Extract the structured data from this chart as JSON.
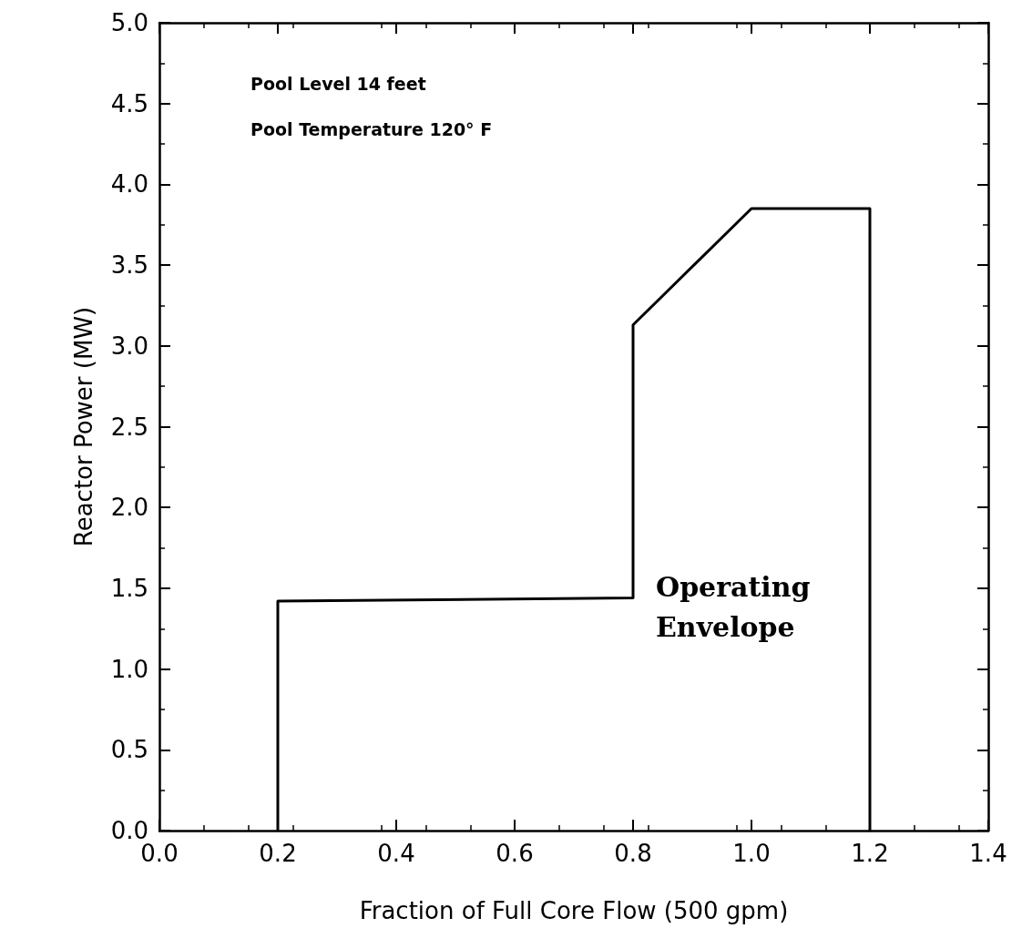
{
  "chart_data": {
    "type": "line",
    "xlabel": "Fraction of Full Core Flow (500 gpm)",
    "ylabel": "Reactor Power (MW)",
    "annotations": [
      "Pool Level 14 feet",
      "Pool Temperature 120° F",
      "Operating\nEnvelope"
    ],
    "series": [
      {
        "x": [
          0.2,
          0.2,
          0.8,
          0.8,
          1.0,
          1.2,
          1.2
        ],
        "values": [
          0,
          1.42,
          1.44,
          3.13,
          3.85,
          3.85,
          0
        ],
        "color": "#000000"
      }
    ],
    "xlim": [
      0,
      1.4
    ],
    "ylim": [
      0,
      5
    ],
    "xticks": [
      {
        "value": 0,
        "label": "0.0"
      },
      0.2,
      0.4,
      0.6,
      0.8,
      {
        "value": 1,
        "label": "1.0"
      },
      1.2,
      1.4
    ],
    "yticks": [
      {
        "value": 0,
        "label": "0.0"
      },
      0.5,
      {
        "value": 1,
        "label": "1.0"
      },
      1.5,
      {
        "value": 2,
        "label": "2.0"
      },
      2.5,
      {
        "value": 3,
        "label": "3.0"
      },
      3.5,
      {
        "value": 4,
        "label": "4.0"
      },
      4.5,
      {
        "value": 5,
        "label": "5.0"
      }
    ],
    "grid": false,
    "marker": "none",
    "line_style": "solid"
  }
}
